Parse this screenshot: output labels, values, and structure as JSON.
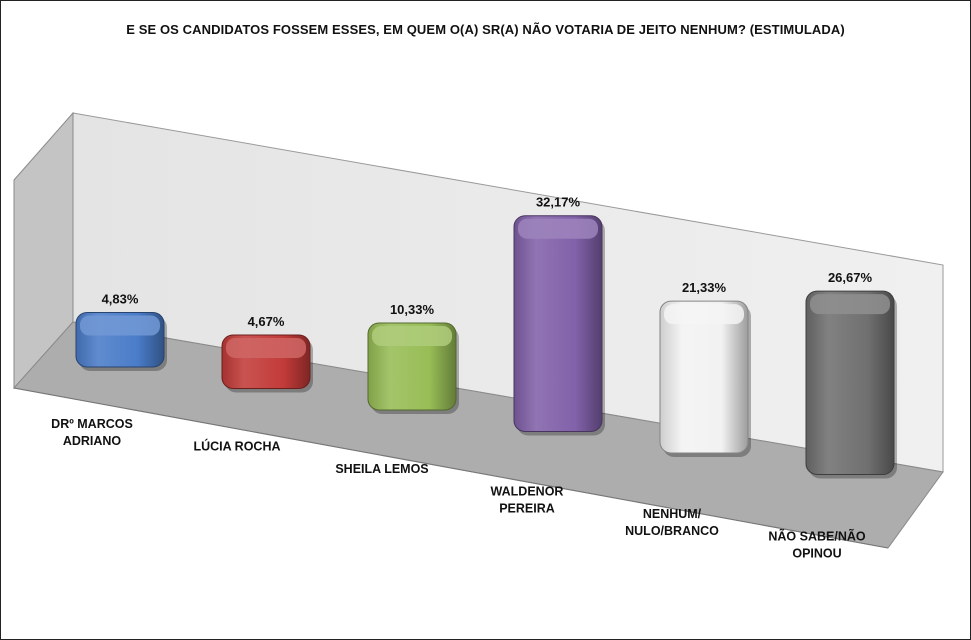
{
  "chart_data": {
    "type": "bar",
    "title": "E SE OS CANDIDATOS FOSSEM ESSES, EM QUEM O(A) SR(A) NÃO VOTARIA DE JEITO NENHUM? (ESTIMULADA)",
    "categories": [
      "DRº MARCOS ADRIANO",
      "LÚCIA ROCHA",
      "SHEILA LEMOS",
      "WALDENOR PEREIRA",
      "NENHUM/ NULO/BRANCO",
      "NÃO SABE/NÃO OPINOU"
    ],
    "category_lines": [
      [
        "DRº MARCOS",
        "ADRIANO"
      ],
      [
        "LÚCIA ROCHA"
      ],
      [
        "SHEILA LEMOS"
      ],
      [
        "WALDENOR",
        "PEREIRA"
      ],
      [
        "NENHUM/",
        "NULO/BRANCO"
      ],
      [
        "NÃO SABE/NÃO",
        "OPINOU"
      ]
    ],
    "values": [
      4.83,
      4.67,
      10.33,
      32.17,
      21.33,
      26.67
    ],
    "value_labels": [
      "4,83%",
      "4,67%",
      "10,33%",
      "32,17%",
      "21,33%",
      "26,67%"
    ],
    "colors": [
      "#4a7cc9",
      "#c23b39",
      "#98bd56",
      "#8161a9",
      "#f2f2f2",
      "#707070"
    ],
    "xlabel": "",
    "ylabel": "",
    "grid": false,
    "legend": "none",
    "style": "3d-column"
  }
}
